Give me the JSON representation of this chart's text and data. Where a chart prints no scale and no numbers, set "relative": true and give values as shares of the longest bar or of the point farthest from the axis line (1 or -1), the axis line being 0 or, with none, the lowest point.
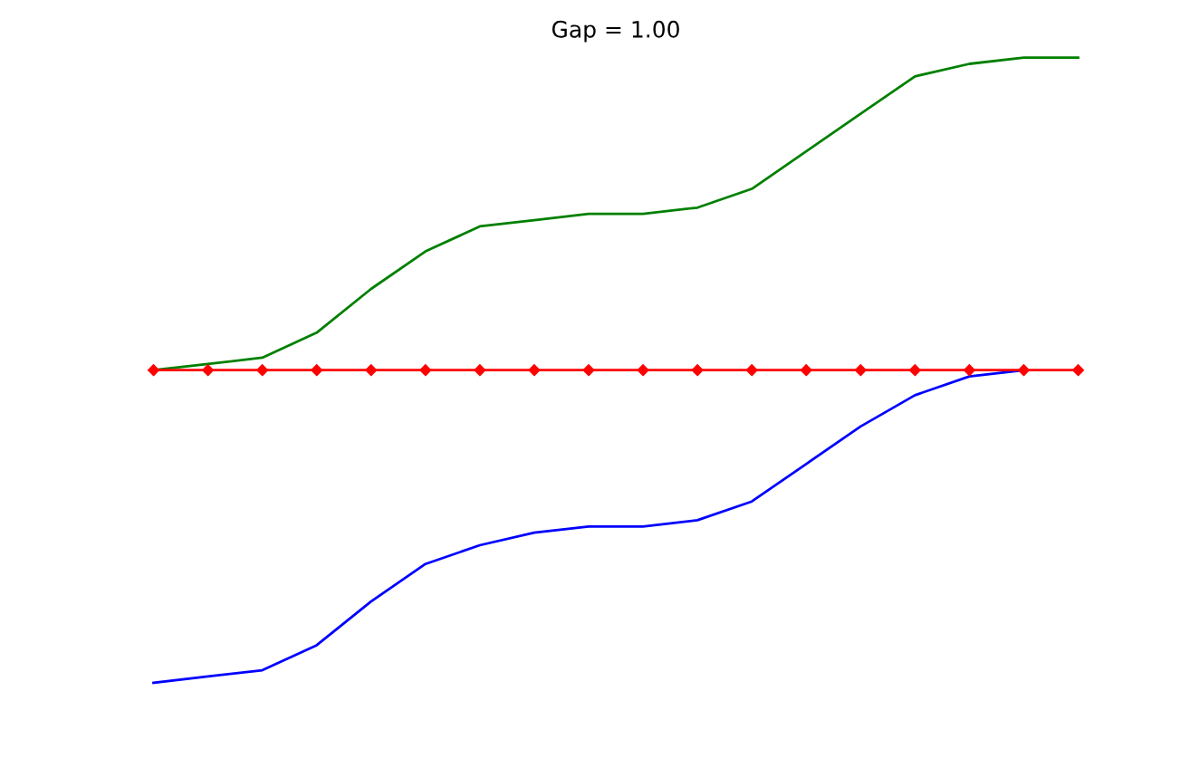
{
  "chart_data": {
    "type": "line",
    "title": "Gap = 1.00",
    "relative": true,
    "categories": [
      null,
      null,
      null,
      null,
      null,
      null,
      null,
      null,
      null,
      null,
      null,
      null,
      null,
      null,
      null,
      null,
      null,
      null
    ],
    "series": [
      {
        "color": "#008000",
        "values": [
          0.5,
          0.51,
          0.52,
          0.56,
          0.63,
          0.69,
          0.73,
          0.74,
          0.75,
          0.75,
          0.76,
          0.79,
          0.85,
          0.91,
          0.97,
          0.99,
          1.0,
          1.0
        ]
      },
      {
        "color": "#0000ff",
        "values": [
          0.0,
          0.01,
          0.02,
          0.06,
          0.13,
          0.19,
          0.22,
          0.24,
          0.25,
          0.25,
          0.26,
          0.29,
          0.35,
          0.41,
          0.46,
          0.49,
          0.5,
          null
        ]
      },
      {
        "color": "#ff0000",
        "values": [
          0.5,
          0.5,
          0.5,
          0.5,
          0.5,
          0.5,
          0.5,
          0.5,
          0.5,
          0.5,
          0.5,
          0.5,
          0.5,
          0.5,
          0.5,
          0.5,
          0.5,
          0.5
        ],
        "marker": "diamond"
      }
    ]
  }
}
